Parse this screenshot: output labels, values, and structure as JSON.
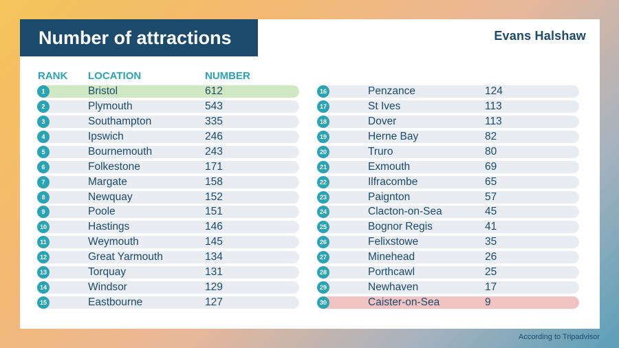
{
  "title": "Number of attractions",
  "brand": "Evans Halshaw",
  "headers": {
    "rank": "RANK",
    "location": "LOCATION",
    "number": "NUMBER"
  },
  "footer": "According to Tripadvisor",
  "colors": {
    "accent": "#2aa3b3",
    "navy": "#1b4a6b",
    "highlight_top": "#cfe8c3",
    "highlight_bottom": "#f2c3c3",
    "row": "#e9edf1"
  },
  "chart_data": {
    "type": "table",
    "columns": [
      "RANK",
      "LOCATION",
      "NUMBER"
    ],
    "rows": [
      {
        "rank": "1",
        "location": "Bristol",
        "number": "612"
      },
      {
        "rank": "2",
        "location": "Plymouth",
        "number": "543"
      },
      {
        "rank": "3",
        "location": "Southampton",
        "number": "335"
      },
      {
        "rank": "4",
        "location": "Ipswich",
        "number": "246"
      },
      {
        "rank": "5",
        "location": "Bournemouth",
        "number": "243"
      },
      {
        "rank": "6",
        "location": "Folkestone",
        "number": "171"
      },
      {
        "rank": "7",
        "location": "Margate",
        "number": "158"
      },
      {
        "rank": "8",
        "location": "Newquay",
        "number": "152"
      },
      {
        "rank": "9",
        "location": "Poole",
        "number": "151"
      },
      {
        "rank": "10",
        "location": "Hastings",
        "number": "146"
      },
      {
        "rank": "11",
        "location": "Weymouth",
        "number": "145"
      },
      {
        "rank": "12",
        "location": "Great Yarmouth",
        "number": "134"
      },
      {
        "rank": "13",
        "location": "Torquay",
        "number": "131"
      },
      {
        "rank": "14",
        "location": "Windsor",
        "number": "129"
      },
      {
        "rank": "15",
        "location": "Eastbourne",
        "number": "127"
      },
      {
        "rank": "16",
        "location": "Penzance",
        "number": "124"
      },
      {
        "rank": "17",
        "location": "St Ives",
        "number": "113"
      },
      {
        "rank": "18",
        "location": "Dover",
        "number": "113"
      },
      {
        "rank": "19",
        "location": "Herne Bay",
        "number": "82"
      },
      {
        "rank": "20",
        "location": "Truro",
        "number": "80"
      },
      {
        "rank": "21",
        "location": "Exmouth",
        "number": "69"
      },
      {
        "rank": "22",
        "location": "Ilfracombe",
        "number": "65"
      },
      {
        "rank": "23",
        "location": "Paignton",
        "number": "57"
      },
      {
        "rank": "24",
        "location": "Clacton-on-Sea",
        "number": "45"
      },
      {
        "rank": "25",
        "location": "Bognor Regis",
        "number": "41"
      },
      {
        "rank": "26",
        "location": "Felixstowe",
        "number": "35"
      },
      {
        "rank": "27",
        "location": "Minehead",
        "number": "26"
      },
      {
        "rank": "28",
        "location": "Porthcawl",
        "number": "25"
      },
      {
        "rank": "29",
        "location": "Newhaven",
        "number": "17"
      },
      {
        "rank": "30",
        "location": "Caister-on-Sea",
        "number": "9"
      }
    ]
  }
}
